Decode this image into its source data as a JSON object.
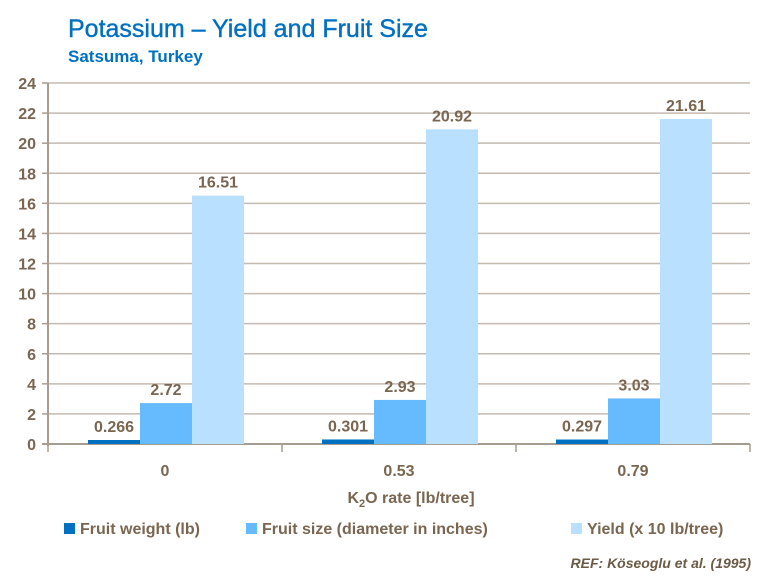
{
  "chart_data": {
    "type": "bar",
    "title": "Potassium – Yield and Fruit Size",
    "subtitle": "Satsuma, Turkey",
    "xlabel_parts": [
      "K",
      "2",
      "O rate [lb/tree]"
    ],
    "ylabel": "",
    "ylim": [
      0,
      24
    ],
    "yticks": [
      0,
      2,
      4,
      6,
      8,
      10,
      12,
      14,
      16,
      18,
      20,
      22,
      24
    ],
    "grid": true,
    "legend_position": "bottom",
    "categories": [
      "0",
      "0.53",
      "0.79"
    ],
    "series": [
      {
        "name": "Fruit weight (lb)",
        "color": "#0070c0",
        "values": [
          0.266,
          0.301,
          0.297
        ],
        "labels": [
          "0.266",
          "0.301",
          "0.297"
        ]
      },
      {
        "name": "Fruit size (diameter in inches)",
        "color": "#66bbff",
        "values": [
          2.72,
          2.93,
          3.03
        ],
        "labels": [
          "2.72",
          "2.93",
          "3.03"
        ]
      },
      {
        "name": "Yield (x 10 lb/tree)",
        "color": "#b9e0ff",
        "values": [
          16.51,
          20.92,
          21.61
        ],
        "labels": [
          "16.51",
          "20.92",
          "21.61"
        ]
      }
    ],
    "reference": "REF: Köseoglu  et al. (1995)"
  }
}
